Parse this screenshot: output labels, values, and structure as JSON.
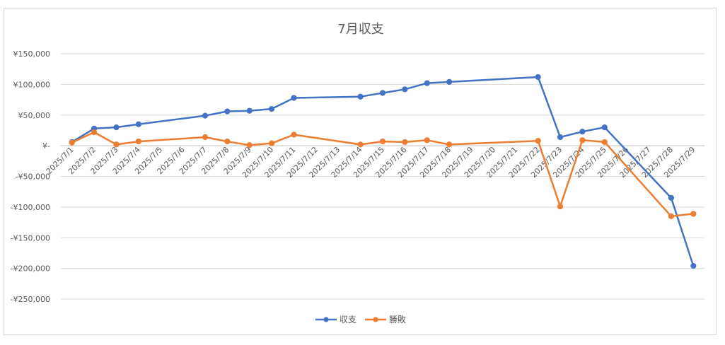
{
  "chart_data": {
    "type": "line",
    "title": "7月収支",
    "xlabel": "",
    "ylabel": "",
    "ylim": [
      -250000,
      150000
    ],
    "y_ticks": [
      150000,
      100000,
      50000,
      0,
      -50000,
      -100000,
      -150000,
      -200000,
      -250000
    ],
    "y_tick_labels": [
      "¥150,000",
      "¥100,000",
      "¥50,000",
      "¥-",
      "-¥50,000",
      "-¥100,000",
      "-¥150,000",
      "-¥200,000",
      "-¥250,000"
    ],
    "categories": [
      "2025/7/1",
      "2025/7/2",
      "2025/7/3",
      "2025/7/4",
      "2025/7/5",
      "2025/7/6",
      "2025/7/7",
      "2025/7/8",
      "2025/7/9",
      "2025/7/10",
      "2025/7/11",
      "2025/7/12",
      "2025/7/13",
      "2025/7/14",
      "2025/7/15",
      "2025/7/16",
      "2025/7/17",
      "2025/7/18",
      "2025/7/19",
      "2025/7/20",
      "2025/7/21",
      "2025/7/22",
      "2025/7/23",
      "2025/7/24",
      "2025/7/25",
      "2025/7/26",
      "2025/7/27",
      "2025/7/28",
      "2025/7/29"
    ],
    "grid": true,
    "legend_position": "bottom",
    "series": [
      {
        "name": "収支",
        "color": "#4472C4",
        "points": [
          [
            "2025/7/1",
            6000
          ],
          [
            "2025/7/2",
            28000
          ],
          [
            "2025/7/3",
            30000
          ],
          [
            "2025/7/4",
            35000
          ],
          [
            "2025/7/7",
            49000
          ],
          [
            "2025/7/8",
            56000
          ],
          [
            "2025/7/9",
            57000
          ],
          [
            "2025/7/10",
            60000
          ],
          [
            "2025/7/11",
            78000
          ],
          [
            "2025/7/14",
            80000
          ],
          [
            "2025/7/15",
            86000
          ],
          [
            "2025/7/16",
            92000
          ],
          [
            "2025/7/17",
            102000
          ],
          [
            "2025/7/18",
            104000
          ],
          [
            "2025/7/22",
            112000
          ],
          [
            "2025/7/23",
            14000
          ],
          [
            "2025/7/24",
            23000
          ],
          [
            "2025/7/25",
            30000
          ],
          [
            "2025/7/28",
            -85000
          ],
          [
            "2025/7/29",
            -196000
          ]
        ]
      },
      {
        "name": "勝敗",
        "color": "#ED7D31",
        "points": [
          [
            "2025/7/1",
            5000
          ],
          [
            "2025/7/2",
            22000
          ],
          [
            "2025/7/3",
            2000
          ],
          [
            "2025/7/4",
            7000
          ],
          [
            "2025/7/7",
            14000
          ],
          [
            "2025/7/8",
            7000
          ],
          [
            "2025/7/9",
            1000
          ],
          [
            "2025/7/10",
            4000
          ],
          [
            "2025/7/11",
            18000
          ],
          [
            "2025/7/14",
            2000
          ],
          [
            "2025/7/15",
            7000
          ],
          [
            "2025/7/16",
            6000
          ],
          [
            "2025/7/17",
            9000
          ],
          [
            "2025/7/18",
            2000
          ],
          [
            "2025/7/22",
            8000
          ],
          [
            "2025/7/23",
            -99000
          ],
          [
            "2025/7/24",
            9000
          ],
          [
            "2025/7/25",
            6000
          ],
          [
            "2025/7/28",
            -115000
          ],
          [
            "2025/7/29",
            -111000
          ]
        ]
      }
    ]
  }
}
